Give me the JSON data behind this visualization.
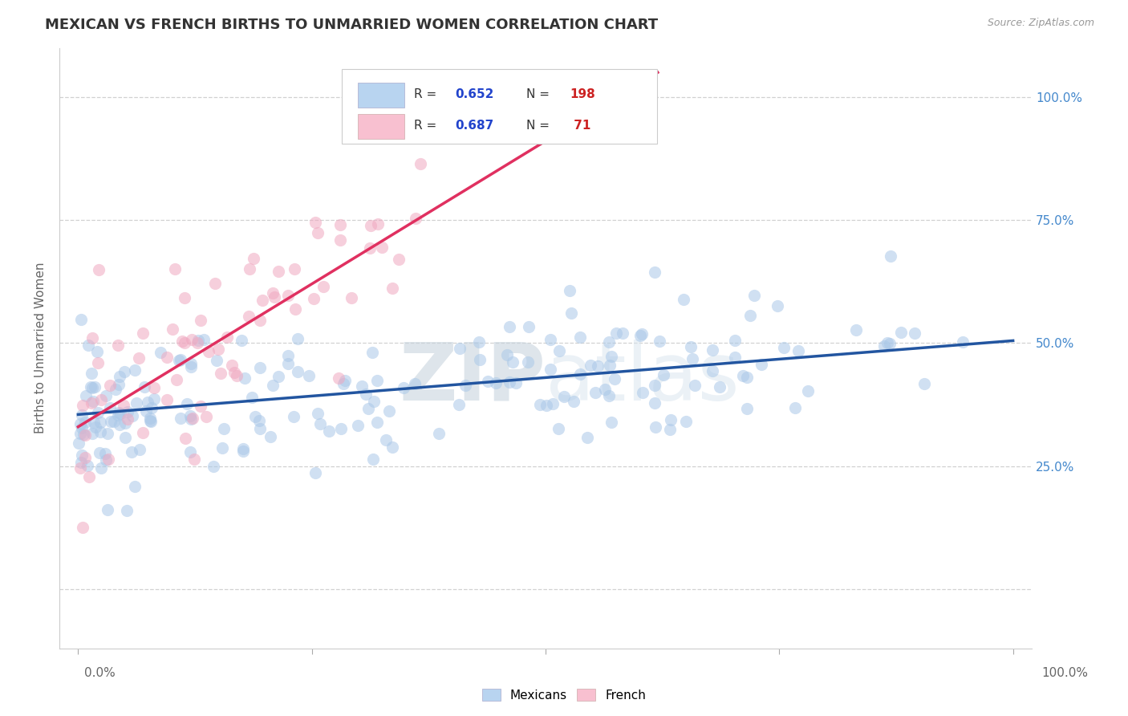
{
  "title": "MEXICAN VS FRENCH BIRTHS TO UNMARRIED WOMEN CORRELATION CHART",
  "source": "Source: ZipAtlas.com",
  "ylabel": "Births to Unmarried Women",
  "yticks": [
    0.0,
    0.25,
    0.5,
    0.75,
    1.0
  ],
  "ytick_labels": [
    "",
    "25.0%",
    "50.0%",
    "75.0%",
    "100.0%"
  ],
  "mexicans_R": 0.652,
  "mexicans_N": 198,
  "french_R": 0.687,
  "french_N": 71,
  "mexicans_color": "#aac8e8",
  "french_color": "#f0a8c0",
  "mexicans_line_color": "#2255a0",
  "french_line_color": "#e03060",
  "legend_box_mexicans": "#b8d4f0",
  "legend_box_french": "#f8c0d0",
  "watermark": "ZIPAtlas",
  "background_color": "#ffffff",
  "grid_color": "#cccccc",
  "title_color": "#333333",
  "axis_label_color": "#666666",
  "legend_r_color": "#2244cc",
  "legend_n_color": "#cc2222",
  "legend_text_color": "#333333",
  "seed": 42,
  "mexicans_trend_x0": 0.0,
  "mexicans_trend_y0": 0.355,
  "mexicans_trend_x1": 1.0,
  "mexicans_trend_y1": 0.505,
  "french_trend_x0": 0.0,
  "french_trend_y0": 0.33,
  "french_trend_x1": 0.62,
  "french_trend_y1": 1.05,
  "dot_size": 120,
  "dot_alpha": 0.55,
  "xlim_min": -0.02,
  "xlim_max": 1.02,
  "ylim_min": -0.12,
  "ylim_max": 1.1
}
